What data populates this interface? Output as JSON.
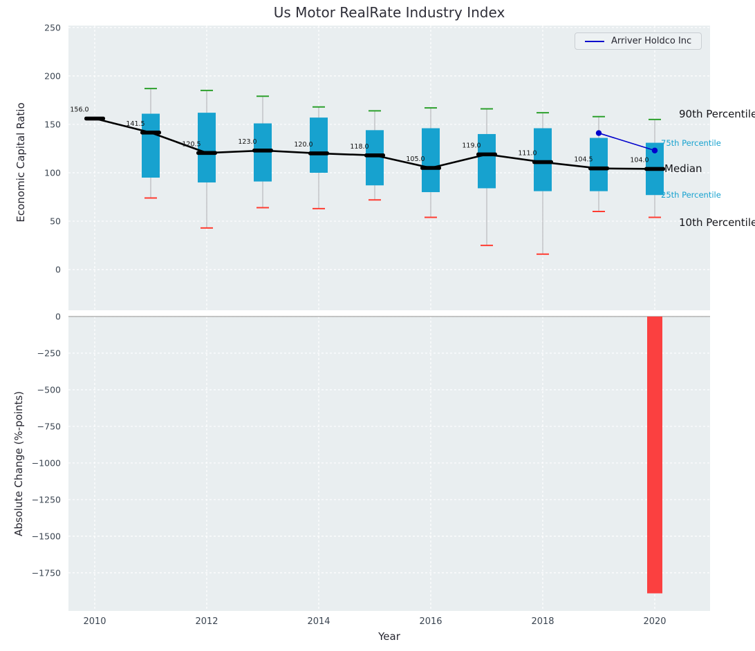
{
  "title": "Us Motor RealRate Industry Index",
  "legend": {
    "series_label": "Arriver Holdco Inc"
  },
  "annotations": {
    "p90_label": "90th Percentile",
    "p75_label": "75th Percentile",
    "median_label": "Median",
    "p25_label": "25th Percentile",
    "p10_label": "10th Percentile"
  },
  "colors": {
    "figure_bg": "#ffffff",
    "axes_bg": "#e9eef0",
    "grid": "#ffffff",
    "box_fill": "#17a2cf",
    "whisker": "#b3b3b8",
    "cap_top": "#2ca02c",
    "cap_bottom": "#ff3b30",
    "median": "#000000",
    "company_line": "#0000cc",
    "bar_negative": "#fb4040",
    "zero_line": "#a5a5a5",
    "tick_text": "#3a4450",
    "percentile_accent": "#17a2cf"
  },
  "chart_data": [
    {
      "type": "boxplot",
      "title": "Us Motor RealRate Industry Index",
      "ylabel": "Economic Capital Ratio",
      "ylim": [
        -42,
        252
      ],
      "y_ticks": [
        0,
        50,
        100,
        150,
        200,
        250
      ],
      "x_grid": [
        2010,
        2012,
        2014,
        2016,
        2018,
        2020
      ],
      "years": [
        2010,
        2011,
        2012,
        2013,
        2014,
        2015,
        2016,
        2017,
        2018,
        2019,
        2020
      ],
      "median": [
        156.0,
        141.5,
        120.5,
        123.0,
        120.0,
        118.0,
        105.0,
        119.0,
        111.0,
        104.5,
        104.0
      ],
      "q3": [
        null,
        161,
        162,
        151,
        157,
        144,
        146,
        140,
        146,
        136,
        131
      ],
      "q1": [
        null,
        95,
        90,
        91,
        100,
        87,
        80,
        84,
        81,
        81,
        77
      ],
      "p90": [
        null,
        187,
        185,
        179,
        168,
        164,
        167,
        166,
        162,
        158,
        155
      ],
      "p10": [
        null,
        74,
        43,
        64,
        63,
        72,
        54,
        25,
        16,
        60,
        54
      ],
      "company_series": {
        "name": "Arriver Holdco Inc",
        "x": [
          2019,
          2020
        ],
        "y": [
          141,
          123
        ]
      }
    },
    {
      "type": "bar",
      "ylabel": "Absolute Change (%-points)",
      "xlabel": "Year",
      "ylim": [
        -2010,
        0
      ],
      "y_ticks": [
        0,
        -250,
        -500,
        -750,
        -1000,
        -1250,
        -1500,
        -1750
      ],
      "x_ticks": [
        2010,
        2012,
        2014,
        2016,
        2018,
        2020
      ],
      "bars": [
        {
          "x": 2020,
          "value": -1890
        }
      ]
    }
  ]
}
